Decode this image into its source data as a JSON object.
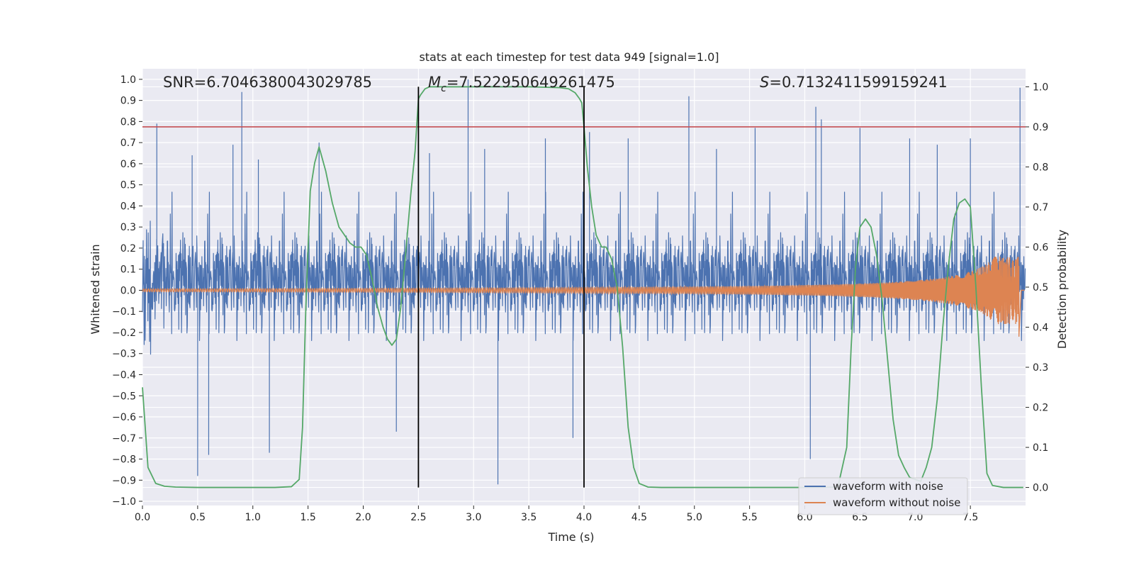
{
  "chart_data": {
    "type": "line",
    "title": "stats at each timestep for test data 949 [signal=1.0]",
    "xlabel": "Time (s)",
    "ylabel_left": "Whitened strain",
    "ylabel_right": "Detection probability",
    "xlim": [
      0.0,
      8.0
    ],
    "ylim_left": [
      -1.02,
      1.05
    ],
    "ylim_right": [
      -0.045,
      1.045
    ],
    "x_ticks": [
      "0.0",
      "0.5",
      "1.0",
      "1.5",
      "2.0",
      "2.5",
      "3.0",
      "3.5",
      "4.0",
      "4.5",
      "5.0",
      "5.5",
      "6.0",
      "6.5",
      "7.0",
      "7.5"
    ],
    "y_ticks_left": [
      "1.0",
      "0.9",
      "0.8",
      "0.7",
      "0.6",
      "0.5",
      "0.4",
      "0.3",
      "0.2",
      "0.1",
      "0.0",
      "−0.1",
      "−0.2",
      "−0.3",
      "−0.4",
      "−0.5",
      "−0.6",
      "−0.7",
      "−0.8",
      "−0.9",
      "−1.0"
    ],
    "y_ticks_right": [
      "1.0",
      "0.9",
      "0.8",
      "0.7",
      "0.6",
      "0.5",
      "0.4",
      "0.3",
      "0.2",
      "0.1",
      "0.0"
    ],
    "annotations": {
      "snr": "SNR=6.7046380043029785",
      "mc_symbol": "M",
      "mc_sub": "c",
      "mc_value": "=7.522950649261475",
      "s_symbol": "S",
      "s_value": "=0.7132411599159241"
    },
    "legend": {
      "placement": "lower-right",
      "entries": [
        "waveform with noise",
        "waveform without noise"
      ]
    },
    "threshold_line": {
      "axis": "right",
      "value": 0.9,
      "color": "#c44e52"
    },
    "vertical_lines": [
      2.5,
      4.0
    ],
    "colors": {
      "noise": "#4c72b0",
      "clean": "#dd8452",
      "probability": "#55a868",
      "threshold": "#c44e52",
      "vlines": "#000000",
      "plot_bg": "#eaeaf2",
      "grid": "#ffffff"
    },
    "noise_spikes": [
      {
        "x": 0.13,
        "y": 0.79
      },
      {
        "x": 0.45,
        "y": 0.64
      },
      {
        "x": 0.5,
        "y": -0.88
      },
      {
        "x": 0.6,
        "y": -0.78
      },
      {
        "x": 0.82,
        "y": 0.69
      },
      {
        "x": 0.9,
        "y": 0.94
      },
      {
        "x": 1.05,
        "y": 0.62
      },
      {
        "x": 1.15,
        "y": -0.77
      },
      {
        "x": 1.6,
        "y": 0.7
      },
      {
        "x": 2.3,
        "y": -0.67
      },
      {
        "x": 2.6,
        "y": 0.65
      },
      {
        "x": 2.95,
        "y": 1.0
      },
      {
        "x": 3.1,
        "y": 0.67
      },
      {
        "x": 3.22,
        "y": -0.92
      },
      {
        "x": 3.65,
        "y": 0.72
      },
      {
        "x": 3.9,
        "y": -0.7
      },
      {
        "x": 4.05,
        "y": 0.75
      },
      {
        "x": 4.4,
        "y": 0.72
      },
      {
        "x": 4.95,
        "y": 0.92
      },
      {
        "x": 5.2,
        "y": 0.67
      },
      {
        "x": 5.55,
        "y": 0.77
      },
      {
        "x": 6.05,
        "y": -0.8
      },
      {
        "x": 6.1,
        "y": 0.87
      },
      {
        "x": 6.15,
        "y": 0.81
      },
      {
        "x": 6.5,
        "y": 0.77
      },
      {
        "x": 6.95,
        "y": 0.72
      },
      {
        "x": 7.2,
        "y": 0.69
      },
      {
        "x": 7.5,
        "y": 0.72
      },
      {
        "x": 7.95,
        "y": 0.96
      }
    ],
    "probability_curve": {
      "x": [
        0.0,
        0.05,
        0.12,
        0.2,
        0.3,
        0.5,
        0.8,
        1.0,
        1.2,
        1.35,
        1.42,
        1.45,
        1.48,
        1.52,
        1.56,
        1.6,
        1.66,
        1.72,
        1.78,
        1.83,
        1.88,
        1.93,
        1.98,
        2.03,
        2.08,
        2.13,
        2.18,
        2.22,
        2.26,
        2.3,
        2.34,
        2.38,
        2.43,
        2.47,
        2.5,
        2.52,
        2.56,
        2.6,
        2.7,
        3.0,
        3.5,
        3.78,
        3.86,
        3.92,
        3.96,
        3.98,
        4.0,
        4.03,
        4.07,
        4.11,
        4.16,
        4.2,
        4.25,
        4.3,
        4.35,
        4.4,
        4.45,
        4.5,
        4.58,
        4.7,
        5.0,
        5.5,
        6.0,
        6.3,
        6.38,
        6.42,
        6.46,
        6.5,
        6.55,
        6.6,
        6.65,
        6.7,
        6.75,
        6.8,
        6.85,
        6.9,
        6.95,
        7.0,
        7.05,
        7.1,
        7.15,
        7.2,
        7.25,
        7.3,
        7.35,
        7.4,
        7.45,
        7.5,
        7.55,
        7.6,
        7.65,
        7.7,
        7.8,
        7.98
      ],
      "y": [
        0.25,
        0.05,
        0.01,
        0.003,
        0.001,
        0.0,
        0.0,
        0.0,
        0.0,
        0.002,
        0.02,
        0.15,
        0.45,
        0.74,
        0.81,
        0.85,
        0.79,
        0.71,
        0.65,
        0.63,
        0.61,
        0.6,
        0.6,
        0.58,
        0.52,
        0.45,
        0.4,
        0.37,
        0.355,
        0.37,
        0.45,
        0.57,
        0.73,
        0.84,
        0.97,
        0.98,
        0.995,
        1.0,
        1.0,
        1.0,
        1.0,
        0.998,
        0.995,
        0.985,
        0.97,
        0.96,
        0.9,
        0.8,
        0.7,
        0.63,
        0.6,
        0.6,
        0.57,
        0.5,
        0.35,
        0.15,
        0.05,
        0.01,
        0.001,
        0.0,
        0.0,
        0.0,
        0.0,
        0.001,
        0.1,
        0.35,
        0.55,
        0.65,
        0.67,
        0.65,
        0.58,
        0.47,
        0.32,
        0.17,
        0.08,
        0.05,
        0.025,
        0.02,
        0.015,
        0.05,
        0.1,
        0.22,
        0.4,
        0.55,
        0.67,
        0.71,
        0.72,
        0.7,
        0.5,
        0.25,
        0.035,
        0.005,
        0.0,
        0.0
      ]
    }
  }
}
